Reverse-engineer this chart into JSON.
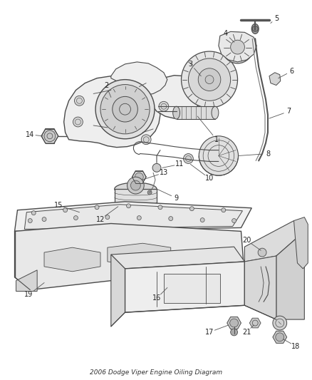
{
  "title": "2006 Dodge Viper Engine Oiling Diagram",
  "background_color": "#ffffff",
  "fig_width": 4.38,
  "fig_height": 5.33,
  "dpi": 100,
  "line_color": "#4a4a4a",
  "label_color": "#222222",
  "label_fontsize": 7.0,
  "gray_fill": "#d8d8d8",
  "light_fill": "#eeeeee",
  "mid_fill": "#c8c8c8",
  "dark_fill": "#b0b0b0"
}
